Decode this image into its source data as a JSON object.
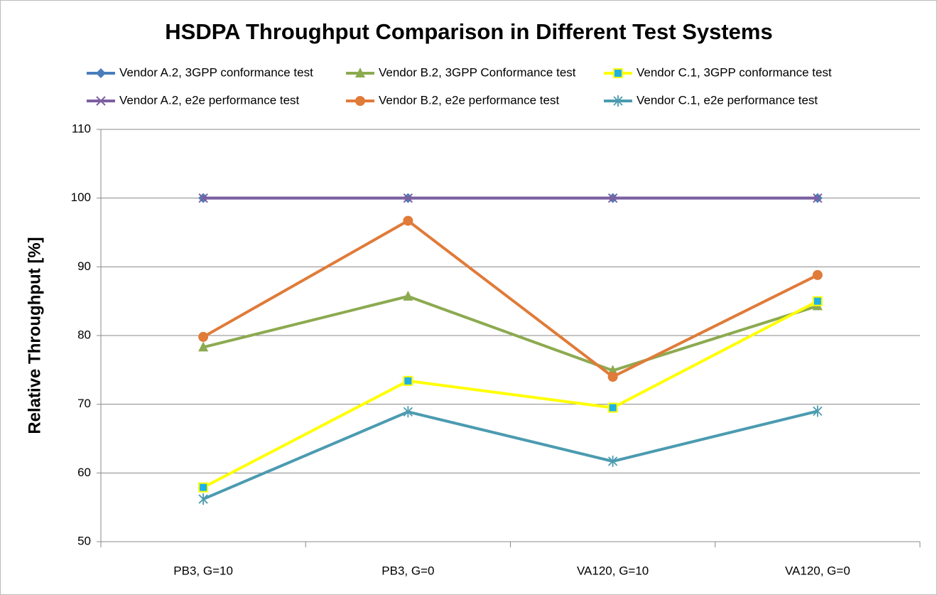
{
  "chart_data": {
    "type": "line",
    "title": "HSDPA Throughput Comparison in Different Test Systems",
    "y_label": "Relative Throughput  [%]",
    "categories": [
      "PB3, G=10",
      "PB3, G=0",
      "VA120, G=10",
      "VA120, G=0"
    ],
    "series": [
      {
        "name": "Vendor A.2, 3GPP conformance test",
        "color": "#4a7ebb",
        "marker": "diamond",
        "values": [
          100,
          100,
          100,
          100
        ]
      },
      {
        "name": "Vendor B.2,  3GPP Conformance test",
        "color": "#8caa50",
        "marker": "triangle",
        "values": [
          78.3,
          85.7,
          74.9,
          84.3
        ]
      },
      {
        "name": "Vendor C.1, 3GPP conformance test",
        "color": "#ffff00",
        "marker": "square",
        "marker_color": "#1fb1e6",
        "values": [
          57.9,
          73.4,
          69.5,
          85.0
        ]
      },
      {
        "name": "Vendor A.2, e2e performance test",
        "color": "#7d5fa0",
        "marker": "x",
        "values": [
          100,
          100,
          100,
          100
        ]
      },
      {
        "name": "Vendor B.2,  e2e performance test",
        "color": "#e07b39",
        "marker": "circle",
        "values": [
          79.8,
          96.7,
          74.0,
          88.8
        ]
      },
      {
        "name": "Vendor C.1, e2e performance test",
        "color": "#4b9bb0",
        "marker": "asterisk",
        "values": [
          56.2,
          68.9,
          61.7,
          69.0
        ]
      }
    ],
    "ylim": [
      50,
      110
    ],
    "yticks": [
      50,
      60,
      70,
      80,
      90,
      100,
      110
    ],
    "grid": true
  }
}
